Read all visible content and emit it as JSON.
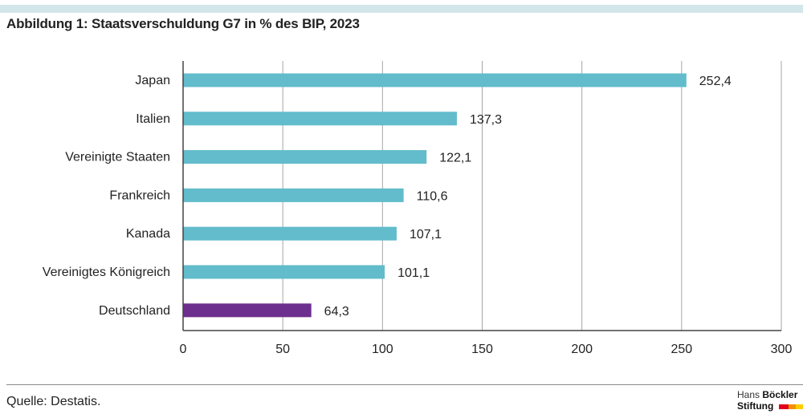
{
  "title": "Abbildung 1: Staatsverschuldung G7 in % des BIP, 2023",
  "source": "Quelle: Destatis.",
  "logo": {
    "line1_light": "Hans",
    "line1_bold": "Böckler",
    "line2": "Stiftung",
    "colors": [
      "#e2001a",
      "#f39200",
      "#ffcc00"
    ]
  },
  "colors": {
    "default_bar": "#62bccb",
    "highlight_bar": "#6d2f8e",
    "gridline": "#a6a6a6",
    "axis": "#444444"
  },
  "chart_data": {
    "type": "bar",
    "orientation": "horizontal",
    "categories": [
      "Japan",
      "Italien",
      "Vereinigte Staaten",
      "Frankreich",
      "Kanada",
      "Vereinigtes Königreich",
      "Deutschland"
    ],
    "values": [
      252.4,
      137.3,
      122.1,
      110.6,
      107.1,
      101.1,
      64.3
    ],
    "value_labels": [
      "252,4",
      "137,3",
      "122,1",
      "110,6",
      "107,1",
      "101,1",
      "64,3"
    ],
    "highlight": "Deutschland",
    "xlim": [
      0,
      300
    ],
    "ticks": [
      0,
      50,
      100,
      150,
      200,
      250,
      300
    ],
    "tick_labels": [
      "0",
      "50",
      "100",
      "150",
      "200",
      "250",
      "300"
    ],
    "grid": true,
    "title": "Abbildung 1: Staatsverschuldung G7 in % des BIP, 2023",
    "xlabel": "",
    "ylabel": ""
  }
}
